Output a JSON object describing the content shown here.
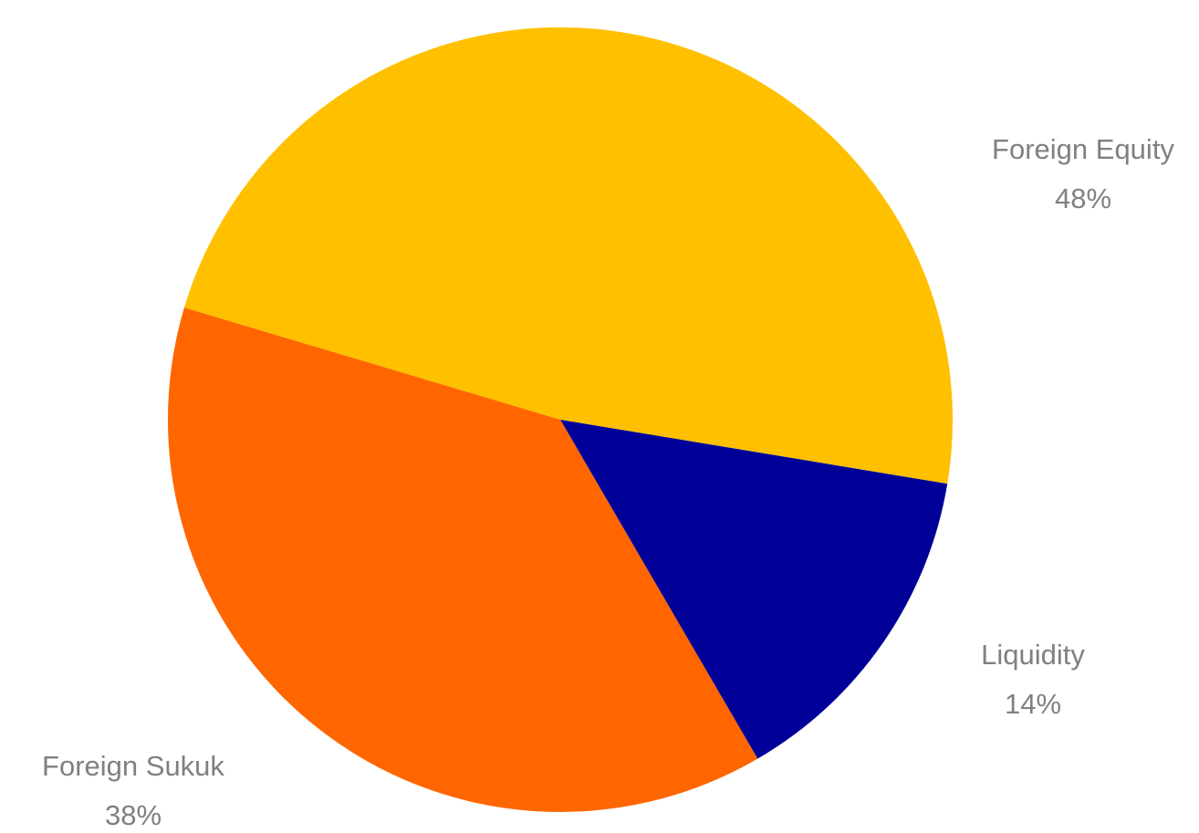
{
  "chart_data": {
    "type": "pie",
    "title": "",
    "slices": [
      {
        "label": "Foreign Equity",
        "value": 48,
        "value_label": "48%",
        "color": "#FFC000"
      },
      {
        "label": "Liquidity",
        "value": 14,
        "value_label": "14%",
        "color": "#000099"
      },
      {
        "label": "Foreign Sukuk",
        "value": 38,
        "value_label": "38%",
        "color": "#FF6600"
      }
    ],
    "legend": "none",
    "label_color": "#808080"
  }
}
